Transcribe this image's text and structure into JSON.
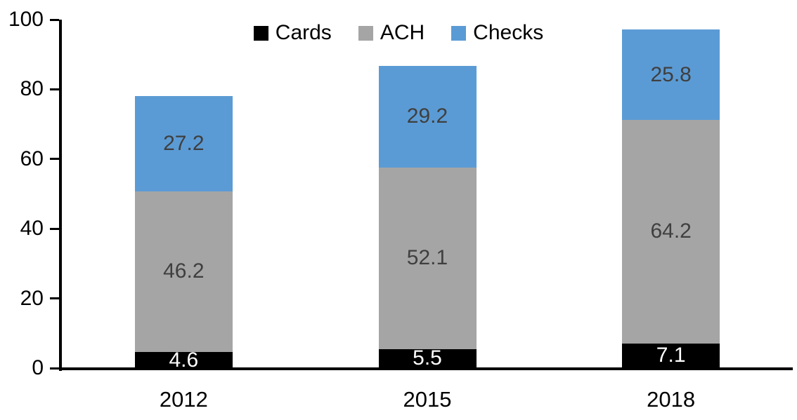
{
  "chart_data": {
    "type": "bar",
    "stacked": true,
    "title": "",
    "categories": [
      "2012",
      "2015",
      "2018"
    ],
    "series": [
      {
        "name": "Cards",
        "color": "#000000",
        "label_color": "#ffffff",
        "values": [
          4.6,
          5.5,
          7.1
        ]
      },
      {
        "name": "ACH",
        "color": "#A5A5A5",
        "label_color": "#3f3f3f",
        "values": [
          46.2,
          52.1,
          64.2
        ]
      },
      {
        "name": "Checks",
        "color": "#5B9BD5",
        "label_color": "#3f3f3f",
        "values": [
          27.2,
          29.2,
          25.8
        ]
      }
    ],
    "totals": [
      78.0,
      86.8,
      97.1
    ],
    "yticks": [
      0,
      20,
      40,
      60,
      80,
      100
    ],
    "ylim": [
      0,
      100
    ],
    "xlabel": "",
    "ylabel": "",
    "grid": false,
    "legend_position": "top-center",
    "axis_color": "#000000",
    "tick_label_color": "#000000"
  }
}
